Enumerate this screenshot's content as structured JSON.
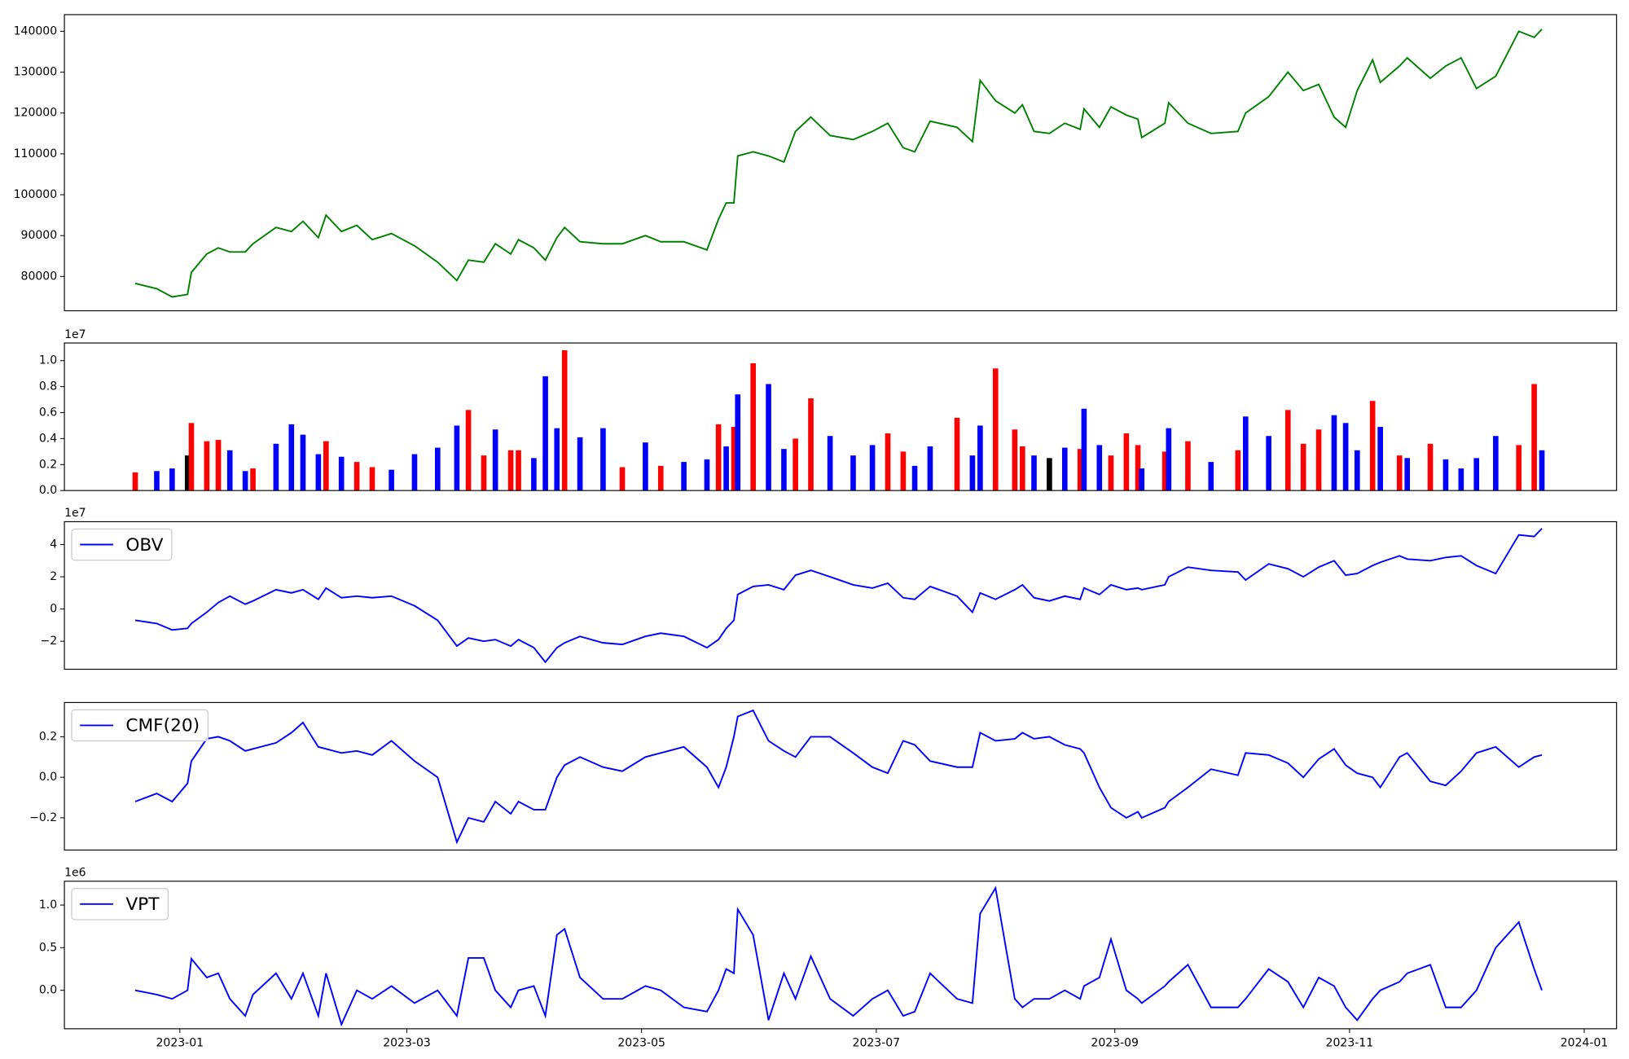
{
  "chart_data": [
    {
      "type": "line",
      "color": "green",
      "values": [
        78300,
        77000,
        75000,
        75600,
        81000,
        85500,
        87000,
        86000,
        86000,
        88000,
        92000,
        91000,
        93500,
        89500,
        95000,
        91000,
        92500,
        89000,
        90500,
        87500,
        83500,
        79000,
        84000,
        83500,
        88000,
        85500,
        89000,
        87000,
        84000,
        89500,
        92000,
        88500,
        88000,
        88000,
        90000,
        88500,
        88500,
        86500,
        94000,
        98000,
        98000,
        109500,
        110500,
        109500,
        108000,
        115500,
        119000,
        114500,
        113500,
        115500,
        117500,
        111500,
        110500,
        118000,
        116500,
        113000,
        128000,
        123000,
        120000,
        122000,
        115500,
        115000,
        117500,
        116000,
        121000,
        116500,
        121500,
        119500,
        118500,
        114000,
        117500,
        122500,
        117500,
        115000,
        115500,
        120000,
        124000,
        130000,
        125500,
        127000,
        119000,
        116500,
        125500,
        133000,
        127500,
        131500,
        133500,
        128500,
        131500,
        133500,
        126000,
        129000,
        140000,
        138500,
        140500
      ],
      "ylim": [
        71600,
        144070
      ],
      "yticks": [
        80000,
        90000,
        100000,
        110000,
        120000,
        130000,
        140000
      ]
    },
    {
      "type": "bar",
      "offset_label": "1e7",
      "values": [
        0.14,
        0.15,
        0.17,
        0.27,
        0.52,
        0.38,
        0.39,
        0.31,
        0.15,
        0.17,
        0.36,
        0.51,
        0.43,
        0.28,
        0.38,
        0.26,
        0.22,
        0.18,
        0.16,
        0.28,
        0.33,
        0.5,
        0.62,
        0.27,
        0.47,
        0.31,
        0.31,
        0.25,
        0.88,
        0.48,
        1.08,
        0.41,
        0.48,
        0.18,
        0.37,
        0.19,
        0.22,
        0.24,
        0.51,
        0.34,
        0.49,
        0.74,
        0.98,
        0.82,
        0.32,
        0.4,
        0.71,
        0.42,
        0.27,
        0.35,
        0.44,
        0.3,
        0.19,
        0.34,
        0.56,
        0.27,
        0.5,
        0.94,
        0.47,
        0.34,
        0.27,
        0.25,
        0.33,
        0.32,
        0.63,
        0.35,
        0.27,
        0.44,
        0.35,
        0.17,
        0.3,
        0.48,
        0.38,
        0.22,
        0.31,
        0.57,
        0.42,
        0.62,
        0.36,
        0.47,
        0.58,
        0.52,
        0.31,
        0.69,
        0.49,
        0.27,
        0.25,
        0.36,
        0.24,
        0.17,
        0.25,
        0.42,
        0.35,
        0.82,
        0.31
      ],
      "colors": [
        "red",
        "blue",
        "blue",
        "black",
        "red",
        "red",
        "red",
        "blue",
        "blue",
        "red",
        "blue",
        "blue",
        "blue",
        "blue",
        "red",
        "blue",
        "red",
        "red",
        "blue",
        "blue",
        "blue",
        "blue",
        "red",
        "red",
        "blue",
        "red",
        "red",
        "blue",
        "blue",
        "blue",
        "red",
        "blue",
        "blue",
        "red",
        "blue",
        "red",
        "blue",
        "blue",
        "red",
        "blue",
        "red",
        "blue",
        "red",
        "blue",
        "blue",
        "red",
        "red",
        "blue",
        "blue",
        "blue",
        "red",
        "red",
        "blue",
        "blue",
        "red",
        "blue",
        "blue",
        "red",
        "red",
        "red",
        "blue",
        "black",
        "blue",
        "red",
        "blue",
        "blue",
        "red",
        "red",
        "red",
        "blue",
        "red",
        "blue",
        "red",
        "blue",
        "red",
        "blue",
        "blue",
        "red",
        "red",
        "red",
        "blue",
        "blue",
        "blue",
        "red",
        "blue",
        "red",
        "blue",
        "red",
        "blue",
        "blue",
        "blue",
        "blue",
        "red",
        "red",
        "blue"
      ],
      "ylim": [
        0,
        1.136
      ],
      "yticks": [
        {
          "value": 0,
          "label": "0.0"
        },
        0.2,
        0.4,
        0.6,
        0.8,
        {
          "value": 1,
          "label": "1.0"
        }
      ]
    },
    {
      "type": "line",
      "color": "blue",
      "name": "OBV",
      "legend": "upper left",
      "offset_label": "1e7",
      "values": [
        -0.7,
        -0.9,
        -1.3,
        -1.2,
        -0.9,
        -0.2,
        0.4,
        0.8,
        0.3,
        0.5,
        1.2,
        1.0,
        1.2,
        0.6,
        1.3,
        0.7,
        0.8,
        0.7,
        0.8,
        0.2,
        -0.7,
        -2.3,
        -1.8,
        -2.0,
        -1.9,
        -2.3,
        -1.9,
        -2.4,
        -3.3,
        -2.4,
        -2.1,
        -1.7,
        -2.1,
        -2.2,
        -1.7,
        -1.5,
        -1.7,
        -2.4,
        -1.9,
        -1.2,
        -0.7,
        0.9,
        1.4,
        1.5,
        1.2,
        2.1,
        2.4,
        2.0,
        1.5,
        1.3,
        1.6,
        0.7,
        0.6,
        1.4,
        0.8,
        -0.2,
        1.0,
        0.6,
        1.2,
        1.5,
        0.7,
        0.5,
        0.8,
        0.6,
        1.3,
        0.9,
        1.5,
        1.2,
        1.3,
        1.2,
        1.5,
        2.0,
        2.6,
        2.4,
        2.3,
        1.8,
        2.8,
        2.5,
        2.0,
        2.6,
        3.0,
        2.1,
        2.2,
        2.7,
        2.9,
        3.3,
        3.1,
        3.0,
        3.2,
        3.3,
        2.7,
        2.2,
        4.6,
        4.5,
        5.0
      ],
      "ylim": [
        -3.74,
        5.42
      ],
      "yticks": [
        {
          "value": -2,
          "label": "−2"
        },
        0,
        2,
        4
      ]
    },
    {
      "type": "line",
      "color": "blue",
      "name": "CMF(20)",
      "legend": "upper left",
      "values": [
        -0.12,
        -0.08,
        -0.12,
        -0.03,
        0.08,
        0.19,
        0.2,
        0.18,
        0.13,
        0.14,
        0.17,
        0.22,
        0.27,
        0.15,
        0.14,
        0.12,
        0.13,
        0.11,
        0.18,
        0.08,
        0.0,
        -0.32,
        -0.2,
        -0.22,
        -0.12,
        -0.18,
        -0.12,
        -0.16,
        -0.16,
        0.0,
        0.06,
        0.1,
        0.05,
        0.03,
        0.1,
        0.12,
        0.15,
        0.05,
        -0.05,
        0.05,
        0.2,
        0.3,
        0.33,
        0.18,
        0.13,
        0.1,
        0.2,
        0.2,
        0.12,
        0.05,
        0.02,
        0.18,
        0.16,
        0.08,
        0.05,
        0.05,
        0.22,
        0.18,
        0.19,
        0.22,
        0.19,
        0.2,
        0.16,
        0.14,
        0.12,
        -0.05,
        -0.15,
        -0.2,
        -0.17,
        -0.2,
        -0.15,
        -0.12,
        -0.05,
        0.04,
        0.01,
        0.12,
        0.11,
        0.07,
        0.0,
        0.09,
        0.14,
        0.06,
        0.02,
        0.0,
        -0.05,
        0.1,
        0.12,
        -0.02,
        -0.04,
        0.03,
        0.12,
        0.15,
        0.05,
        0.1,
        0.11
      ],
      "ylim": [
        -0.359,
        0.369
      ],
      "yticks": [
        {
          "value": -0.2,
          "label": "−0.2"
        },
        {
          "value": 0,
          "label": "0.0"
        },
        0.2
      ]
    },
    {
      "type": "line",
      "color": "blue",
      "name": "VPT",
      "legend": "upper left",
      "offset_label": "1e6",
      "values": [
        0.0,
        -0.05,
        -0.1,
        0.0,
        0.37,
        0.15,
        0.2,
        -0.1,
        -0.3,
        -0.05,
        0.2,
        -0.1,
        0.2,
        -0.3,
        0.2,
        -0.4,
        0.0,
        -0.1,
        0.05,
        -0.15,
        0.0,
        -0.3,
        0.38,
        0.38,
        0.0,
        -0.2,
        0.0,
        0.05,
        -0.3,
        0.65,
        0.72,
        0.15,
        -0.1,
        -0.1,
        0.05,
        0.0,
        -0.2,
        -0.25,
        0.0,
        0.25,
        0.2,
        0.95,
        0.65,
        -0.35,
        0.2,
        -0.1,
        0.4,
        -0.1,
        -0.3,
        -0.1,
        0.0,
        -0.3,
        -0.25,
        0.2,
        -0.1,
        -0.15,
        0.9,
        1.2,
        -0.1,
        -0.2,
        -0.1,
        -0.1,
        0.0,
        -0.1,
        0.05,
        0.15,
        0.6,
        0.0,
        -0.1,
        -0.15,
        0.05,
        0.1,
        0.3,
        -0.2,
        -0.2,
        -0.1,
        0.25,
        0.1,
        -0.2,
        0.15,
        0.05,
        -0.2,
        -0.35,
        -0.1,
        0.0,
        0.1,
        0.2,
        0.3,
        -0.2,
        -0.2,
        0.0,
        0.5,
        0.8,
        0.25,
        0.0
      ],
      "ylim": [
        -0.451,
        1.28
      ],
      "yticks": [
        {
          "value": 0,
          "label": "0.0"
        },
        0.5,
        {
          "value": 1,
          "label": "1.0"
        }
      ],
      "x": [
        -11.6,
        -6,
        -2,
        2,
        3,
        7,
        10,
        13,
        17,
        19,
        25,
        29,
        32,
        36,
        38,
        42,
        46,
        50,
        55,
        61,
        67,
        72,
        75,
        79,
        82,
        86,
        88,
        92,
        95,
        98,
        100,
        104,
        110,
        115,
        121,
        125,
        131,
        137,
        140,
        142,
        144,
        145,
        149,
        153,
        157,
        160,
        164,
        169,
        175,
        180,
        184,
        188,
        191,
        195,
        202,
        206,
        208,
        212,
        217,
        219,
        222,
        226,
        230,
        234,
        235,
        239,
        242,
        246,
        249,
        250,
        256,
        257,
        262,
        268,
        275,
        277,
        283,
        288,
        292,
        296,
        300,
        303,
        306,
        310,
        312,
        317,
        319,
        325,
        329,
        333,
        337,
        342,
        348,
        352,
        354
      ],
      "xlim": [
        -30,
        373.4
      ],
      "xticks": [
        {
          "value": 0,
          "label": "2023-01"
        },
        {
          "value": 59,
          "label": "2023-03"
        },
        {
          "value": 120,
          "label": "2023-05"
        },
        {
          "value": 181,
          "label": "2023-07"
        },
        {
          "value": 243,
          "label": "2023-09"
        },
        {
          "value": 304,
          "label": "2023-11"
        },
        {
          "value": 365,
          "label": "2024-01"
        }
      ]
    }
  ]
}
